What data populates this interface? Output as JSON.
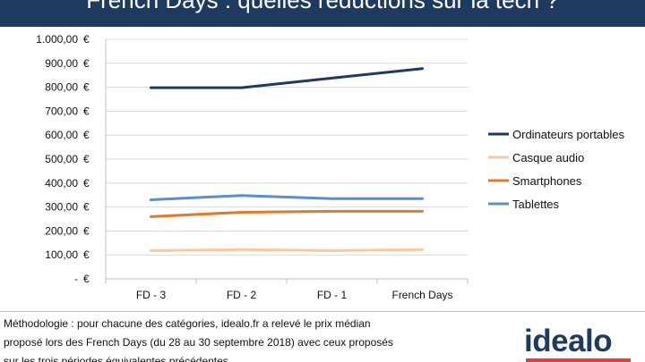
{
  "header": {
    "title": "French Days : quelles réductions sur la tech ?"
  },
  "chart_data": {
    "type": "line",
    "title": "French Days : quelles réductions sur la tech ?",
    "categories": [
      "FD - 3",
      "FD - 2",
      "FD - 1",
      "French Days"
    ],
    "series": [
      {
        "name": "Ordinateurs portables",
        "color": "#1f3a5f",
        "values": [
          798,
          798,
          838,
          878
        ]
      },
      {
        "name": "Casque audio",
        "color": "#f7c9a0",
        "values": [
          118,
          122,
          118,
          122
        ]
      },
      {
        "name": "Smartphones",
        "color": "#e07b2a",
        "values": [
          260,
          278,
          282,
          282
        ]
      },
      {
        "name": "Tablettes",
        "color": "#5b8fc9",
        "values": [
          330,
          348,
          335,
          335
        ]
      }
    ],
    "ylim": [
      0,
      1000
    ],
    "yticks": [
      0,
      100,
      200,
      300,
      400,
      500,
      600,
      700,
      800,
      900,
      1000
    ],
    "ytick_labels": [
      "-",
      "100,00",
      "200,00",
      "300,00",
      "400,00",
      "500,00",
      "600,00",
      "700,00",
      "800,00",
      "900,00",
      "1.000,00"
    ],
    "currency_symbol": "€",
    "grid": true,
    "legend_position": "right"
  },
  "footnote": {
    "lines": [
      "Méthodologie : pour chacune des catégories, idealo.fr a relevé le prix médian",
      "proposé lors des French Days (du 28 au 30 septembre 2018) avec ceux proposés",
      "sur les trois périodes équivalentes précédentes"
    ]
  },
  "brand": {
    "logo_text": "idealo",
    "logo_color": "#1f3a5f",
    "accent_color": "#e8402c"
  }
}
